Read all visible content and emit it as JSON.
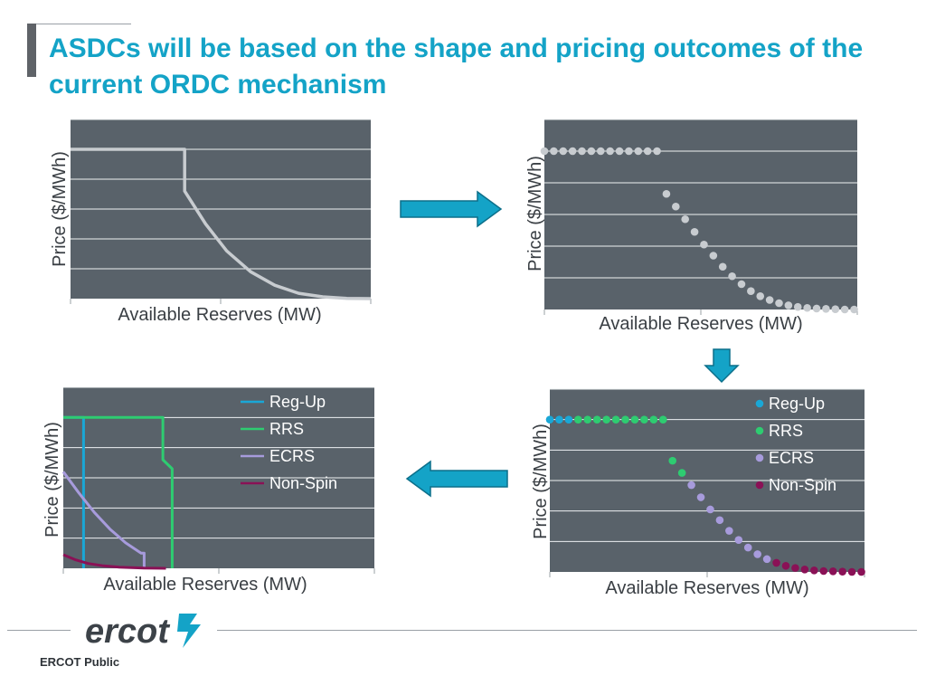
{
  "title": "ASDCs will be based on the shape and pricing outcomes of the current ORDC mechanism",
  "footer": {
    "logo_text": "ercot",
    "classification": "ERCOT Public"
  },
  "colors": {
    "title": "#14a3c7",
    "plot_bg": "#59626a",
    "curve": "#c8ccd0",
    "reg_up": "#1aa7d6",
    "rrs": "#2ecc71",
    "ecrs": "#a79bdc",
    "non_spin": "#8a1156",
    "arrow": "#14a3c7",
    "logo": "#3c4248",
    "logo_accent": "#14a3c7"
  },
  "chart_data": [
    {
      "id": "ordc-line",
      "type": "line",
      "xlabel": "Available Reserves (MW)",
      "ylabel": "Price ($/MWh)",
      "xlim": [
        0,
        100
      ],
      "ylim": [
        0,
        6
      ],
      "grid": true,
      "series": [
        {
          "name": "ORDC",
          "x": [
            0,
            38,
            38,
            45,
            52,
            60,
            68,
            76,
            84,
            92,
            100
          ],
          "y": [
            5,
            5,
            3.6,
            2.5,
            1.6,
            0.9,
            0.45,
            0.18,
            0.06,
            0.01,
            0
          ]
        }
      ]
    },
    {
      "id": "ordc-scatter",
      "type": "scatter",
      "xlabel": "Available Reserves (MW)",
      "ylabel": "Price ($/MWh)",
      "xlim": [
        0,
        100
      ],
      "ylim": [
        0,
        6
      ],
      "grid": true,
      "series": [
        {
          "name": "ORDC",
          "x": [
            0,
            3,
            6,
            9,
            12,
            15,
            18,
            21,
            24,
            27,
            30,
            33,
            36,
            39,
            42,
            45,
            48,
            51,
            54,
            57,
            60,
            63,
            66,
            69,
            72,
            75,
            78,
            81,
            84,
            87,
            90,
            93,
            96,
            99
          ],
          "y": [
            5,
            5,
            5,
            5,
            5,
            5,
            5,
            5,
            5,
            5,
            5,
            5,
            5,
            3.65,
            3.25,
            2.85,
            2.45,
            2.05,
            1.7,
            1.35,
            1.05,
            0.8,
            0.58,
            0.42,
            0.3,
            0.2,
            0.13,
            0.08,
            0.05,
            0.03,
            0.02,
            0.01,
            0.0,
            0.0
          ]
        }
      ]
    },
    {
      "id": "asdc-lines",
      "type": "line",
      "xlabel": "Available Reserves (MW)",
      "ylabel": "Price ($/MWh)",
      "xlim": [
        0,
        100
      ],
      "ylim": [
        0,
        6
      ],
      "grid": true,
      "legend": "top-right",
      "series": [
        {
          "name": "Reg-Up",
          "x": [
            0,
            6.5,
            6.5
          ],
          "y": [
            5,
            5,
            0
          ]
        },
        {
          "name": "RRS",
          "x": [
            0,
            32,
            32,
            35,
            35
          ],
          "y": [
            5,
            5,
            3.6,
            3.3,
            0
          ]
        },
        {
          "name": "ECRS",
          "x": [
            0,
            5,
            10,
            15,
            20,
            25,
            26,
            26
          ],
          "y": [
            3.2,
            2.5,
            1.85,
            1.3,
            0.85,
            0.5,
            0.5,
            0
          ]
        },
        {
          "name": "Non-Spin",
          "x": [
            0,
            4,
            8,
            13,
            18,
            26,
            33
          ],
          "y": [
            0.45,
            0.28,
            0.16,
            0.08,
            0.04,
            0.01,
            0
          ]
        }
      ]
    },
    {
      "id": "asdc-scatter",
      "type": "scatter",
      "xlabel": "Available Reserves (MW)",
      "ylabel": "Price ($/MWh)",
      "xlim": [
        0,
        100
      ],
      "ylim": [
        0,
        6
      ],
      "grid": true,
      "legend": "top-right",
      "series": [
        {
          "name": "Reg-Up",
          "x": [
            0,
            3,
            6
          ],
          "y": [
            5,
            5,
            5
          ]
        },
        {
          "name": "RRS",
          "x": [
            9,
            12,
            15,
            18,
            21,
            24,
            27,
            30,
            33,
            36,
            39,
            42
          ],
          "y": [
            5,
            5,
            5,
            5,
            5,
            5,
            5,
            5,
            5,
            5,
            3.65,
            3.25
          ]
        },
        {
          "name": "ECRS",
          "x": [
            45,
            48,
            51,
            54,
            57,
            60,
            63,
            66,
            69
          ],
          "y": [
            2.85,
            2.45,
            2.05,
            1.7,
            1.35,
            1.05,
            0.8,
            0.58,
            0.42
          ]
        },
        {
          "name": "Non-Spin",
          "x": [
            72,
            75,
            78,
            81,
            84,
            87,
            90,
            93,
            96,
            99
          ],
          "y": [
            0.3,
            0.2,
            0.13,
            0.08,
            0.05,
            0.03,
            0.02,
            0.01,
            0.0,
            0.0
          ]
        }
      ]
    }
  ]
}
